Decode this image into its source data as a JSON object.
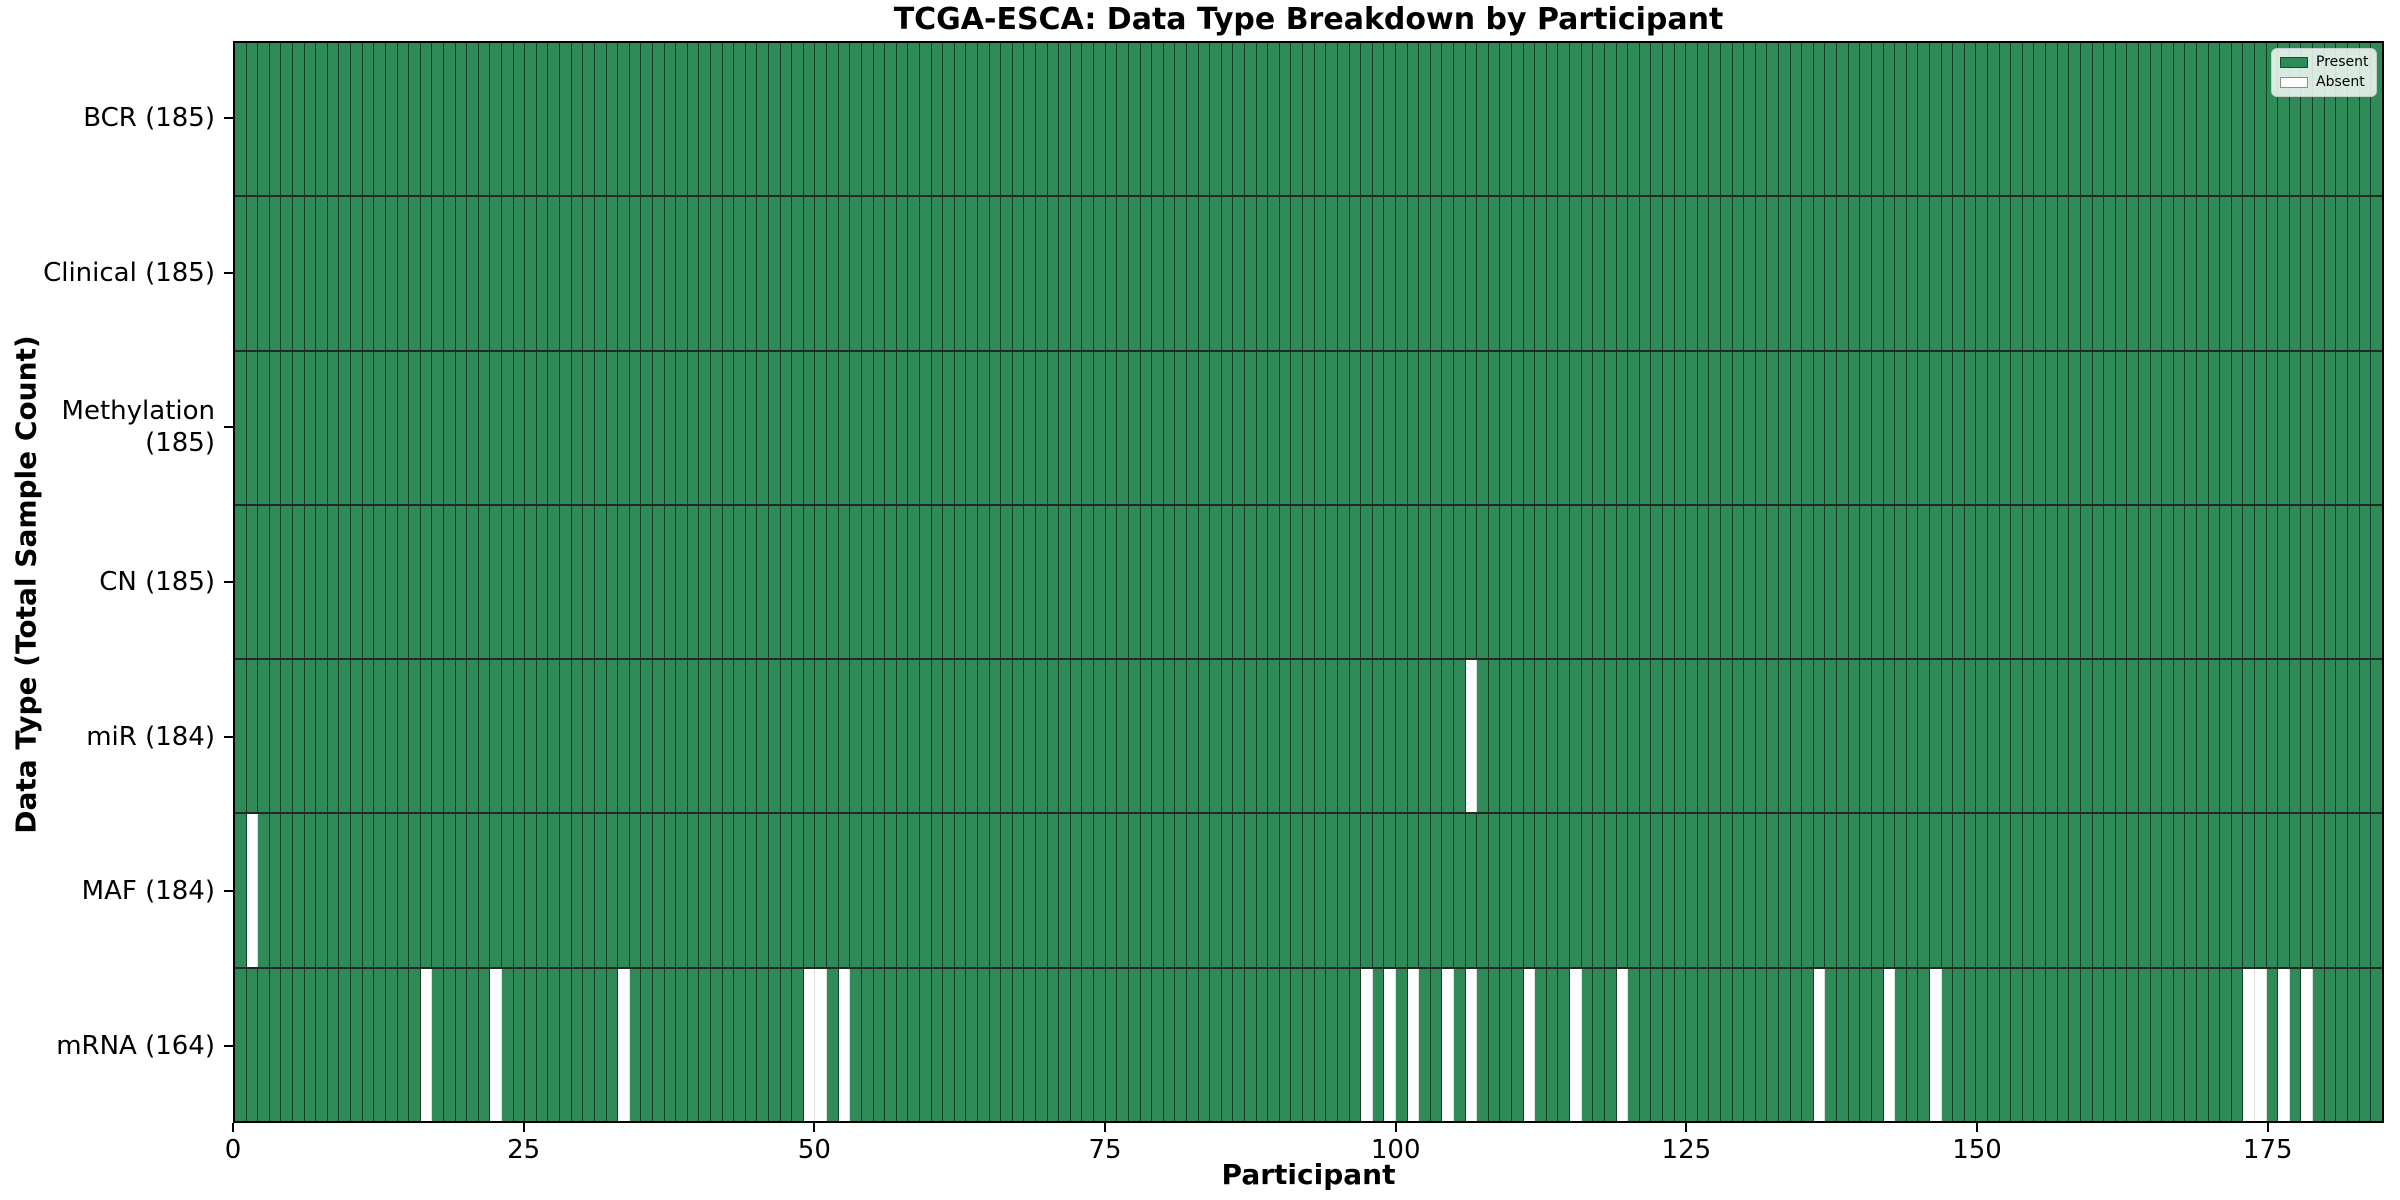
{
  "figure": {
    "title": "TCGA-ESCA: Data Type Breakdown by Participant",
    "xlabel": "Participant",
    "ylabel": "Data Type (Total Sample Count)"
  },
  "legend": {
    "present_label": "Present",
    "absent_label": "Absent"
  },
  "colors": {
    "present": "#2e8b57",
    "absent": "#ffffff",
    "cell_edge": "rgba(0,0,0,0.55)",
    "row_separator": "#000000",
    "spine": "#000000"
  },
  "chart_data": {
    "type": "heatmap",
    "title": "TCGA-ESCA: Data Type Breakdown by Participant",
    "xlabel": "Participant",
    "ylabel": "Data Type (Total Sample Count)",
    "n_participants": 185,
    "x_ticks": [
      0,
      25,
      50,
      75,
      100,
      125,
      150,
      175
    ],
    "xlim": [
      0,
      185
    ],
    "grid": false,
    "legend_position": "upper right",
    "legend": [
      {
        "label": "Present",
        "color": "#2e8b57"
      },
      {
        "label": "Absent",
        "color": "#ffffff"
      }
    ],
    "rows": [
      {
        "name": "BCR",
        "label": "BCR (185)",
        "count": 185,
        "absent_participants": []
      },
      {
        "name": "Clinical",
        "label": "Clinical (185)",
        "count": 185,
        "absent_participants": []
      },
      {
        "name": "Methylation",
        "label": "Methylation (185)",
        "count": 185,
        "absent_participants": []
      },
      {
        "name": "CN",
        "label": "CN (185)",
        "count": 185,
        "absent_participants": []
      },
      {
        "name": "miR",
        "label": "miR (184)",
        "count": 184,
        "absent_participants": [
          106
        ]
      },
      {
        "name": "MAF",
        "label": "MAF (184)",
        "count": 184,
        "absent_participants": [
          1
        ]
      },
      {
        "name": "mRNA",
        "label": "mRNA (164)",
        "count": 164,
        "absent_participants": [
          16,
          22,
          33,
          49,
          50,
          52,
          97,
          99,
          101,
          104,
          106,
          111,
          115,
          119,
          136,
          142,
          146,
          173,
          174,
          176,
          178
        ]
      }
    ]
  }
}
